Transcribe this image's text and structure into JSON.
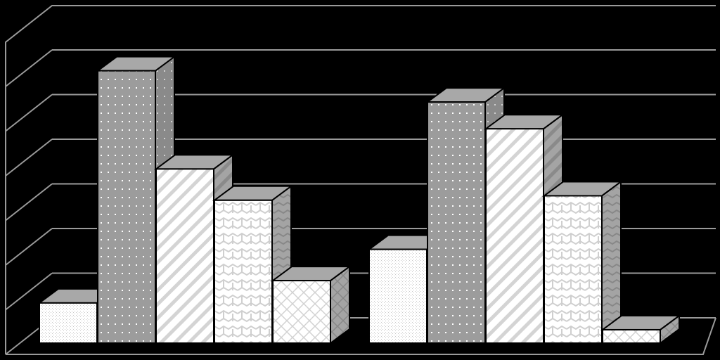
{
  "chart_data": {
    "type": "bar",
    "style": "3d-clustered-column",
    "title": "",
    "xlabel": "",
    "ylabel": "",
    "ylim": [
      0,
      7
    ],
    "grid": true,
    "legend": "none",
    "categories": [
      "",
      ""
    ],
    "series": [
      {
        "pattern": "fine-dots",
        "values": [
          0.9,
          2.1
        ]
      },
      {
        "pattern": "dots",
        "values": [
          6.1,
          5.4
        ]
      },
      {
        "pattern": "diagonal-stripes",
        "values": [
          3.9,
          4.8
        ]
      },
      {
        "pattern": "wave",
        "values": [
          3.2,
          3.3
        ]
      },
      {
        "pattern": "diamond-grid",
        "values": [
          1.4,
          0.3
        ]
      }
    ]
  },
  "colors": {
    "background": "#000000",
    "gridline": "#9a9a9a",
    "front_face": "#ffffff",
    "top_face": "#a8a8a8",
    "side_face": "#8c8c8c",
    "dots_front": "#9c9c9c",
    "outline": "#000000"
  }
}
